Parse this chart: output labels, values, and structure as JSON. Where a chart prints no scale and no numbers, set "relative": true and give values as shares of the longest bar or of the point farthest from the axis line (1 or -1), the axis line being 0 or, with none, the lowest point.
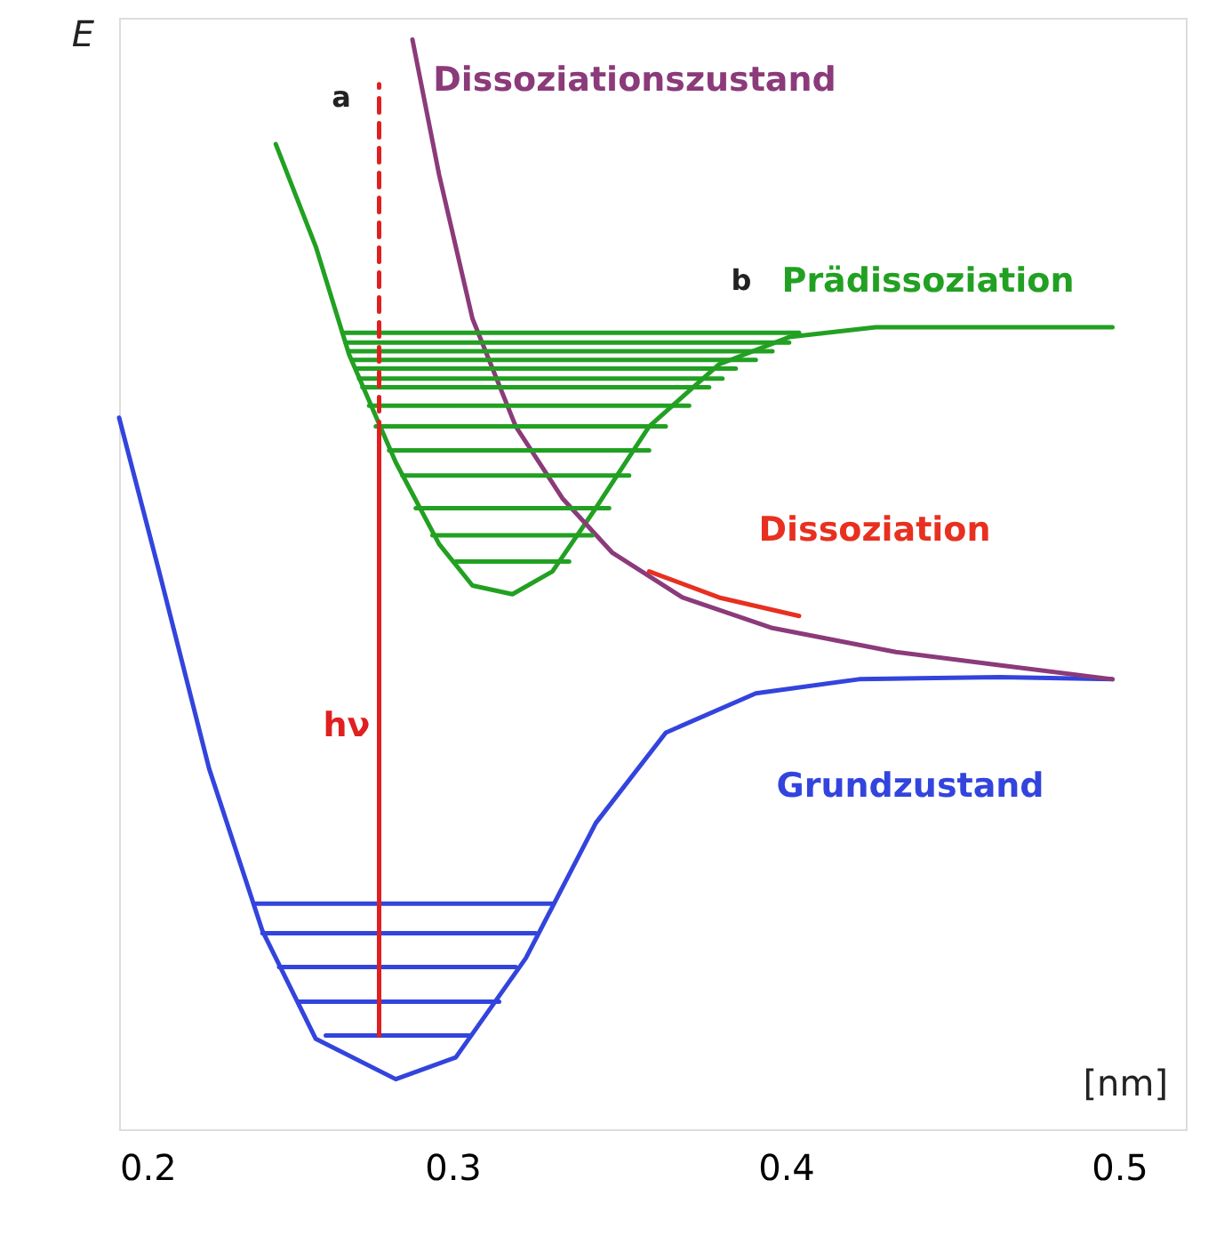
{
  "chart_data": {
    "type": "line",
    "relative": true,
    "xlabel": "[nm]",
    "ylabel": "E",
    "xlim": [
      0.2,
      0.52
    ],
    "xticks": [
      {
        "value": 0.2,
        "label": "0.2"
      },
      {
        "value": 0.3,
        "label": "0.3"
      },
      {
        "value": 0.4,
        "label": "0.4"
      },
      {
        "value": 0.5,
        "label": "0.5"
      }
    ],
    "grid": false,
    "series": [
      {
        "name": "Grundzustand",
        "color": "#3344dd",
        "x": [
          0.2,
          0.212,
          0.227,
          0.243,
          0.259,
          0.283,
          0.301,
          0.322,
          0.343,
          0.364,
          0.391,
          0.422,
          0.464,
          0.498
        ],
        "values": [
          0.653,
          0.512,
          0.331,
          0.182,
          0.083,
          0.046,
          0.066,
          0.157,
          0.281,
          0.364,
          0.4,
          0.413,
          0.415,
          0.413
        ]
      },
      {
        "name": "Prädissoziation",
        "color": "#22a022",
        "x": [
          0.247,
          0.259,
          0.269,
          0.283,
          0.296,
          0.306,
          0.318,
          0.33,
          0.343,
          0.359,
          0.38,
          0.401,
          0.427,
          0.464,
          0.498
        ],
        "values": [
          0.904,
          0.81,
          0.711,
          0.612,
          0.537,
          0.499,
          0.491,
          0.512,
          0.57,
          0.645,
          0.702,
          0.727,
          0.736,
          0.736,
          0.736
        ]
      },
      {
        "name": "Dissoziationszustand",
        "color": "#8b3a7a",
        "x": [
          0.288,
          0.296,
          0.306,
          0.319,
          0.333,
          0.348,
          0.369,
          0.396,
          0.433,
          0.464,
          0.498
        ],
        "values": [
          1.0,
          0.876,
          0.744,
          0.645,
          0.579,
          0.529,
          0.488,
          0.46,
          0.438,
          0.426,
          0.413
        ]
      },
      {
        "color": "#3344dd",
        "x": [
          0.241,
          0.33
        ],
        "values": [
          0.207,
          0.207
        ]
      },
      {
        "color": "#3344dd",
        "x": [
          0.243,
          0.325
        ],
        "values": [
          0.18,
          0.18
        ]
      },
      {
        "color": "#3344dd",
        "x": [
          0.248,
          0.319
        ],
        "values": [
          0.149,
          0.149
        ]
      },
      {
        "color": "#3344dd",
        "x": [
          0.254,
          0.314
        ],
        "values": [
          0.117,
          0.117
        ]
      },
      {
        "color": "#3344dd",
        "x": [
          0.262,
          0.305
        ],
        "values": [
          0.086,
          0.086
        ]
      },
      {
        "color": "#22a022",
        "x": [
          0.267,
          0.404
        ],
        "values": [
          0.731,
          0.731
        ]
      },
      {
        "color": "#22a022",
        "x": [
          0.268,
          0.401
        ],
        "values": [
          0.722,
          0.722
        ]
      },
      {
        "color": "#22a022",
        "x": [
          0.269,
          0.396
        ],
        "values": [
          0.714,
          0.714
        ]
      },
      {
        "color": "#22a022",
        "x": [
          0.27,
          0.391
        ],
        "values": [
          0.706,
          0.706
        ]
      },
      {
        "color": "#22a022",
        "x": [
          0.271,
          0.385
        ],
        "values": [
          0.698,
          0.698
        ]
      },
      {
        "color": "#22a022",
        "x": [
          0.272,
          0.381
        ],
        "values": [
          0.689,
          0.689
        ]
      },
      {
        "color": "#22a022",
        "x": [
          0.273,
          0.377
        ],
        "values": [
          0.681,
          0.681
        ]
      },
      {
        "color": "#22a022",
        "x": [
          0.275,
          0.371
        ],
        "values": [
          0.664,
          0.664
        ]
      },
      {
        "color": "#22a022",
        "x": [
          0.277,
          0.364
        ],
        "values": [
          0.645,
          0.645
        ]
      },
      {
        "color": "#22a022",
        "x": [
          0.281,
          0.359
        ],
        "values": [
          0.623,
          0.623
        ]
      },
      {
        "color": "#22a022",
        "x": [
          0.285,
          0.353
        ],
        "values": [
          0.6,
          0.6
        ]
      },
      {
        "color": "#22a022",
        "x": [
          0.289,
          0.347
        ],
        "values": [
          0.57,
          0.57
        ]
      },
      {
        "color": "#22a022",
        "x": [
          0.294,
          0.342
        ],
        "values": [
          0.545,
          0.545
        ]
      },
      {
        "color": "#22a022",
        "x": [
          0.301,
          0.335
        ],
        "values": [
          0.521,
          0.521
        ]
      },
      {
        "name": "hν",
        "color": "#e02020",
        "x": [
          0.278,
          0.278
        ],
        "values": [
          0.086,
          0.636
        ]
      },
      {
        "color": "#e02020",
        "line_style": "dashed",
        "x": [
          0.278,
          0.278
        ],
        "values": [
          0.636,
          0.959
        ]
      },
      {
        "name": "Dissoziation",
        "color": "#e83020",
        "x": [
          0.359,
          0.38,
          0.404
        ],
        "values": [
          0.512,
          0.488,
          0.471
        ]
      }
    ],
    "annotations": [
      "a",
      "b"
    ]
  }
}
